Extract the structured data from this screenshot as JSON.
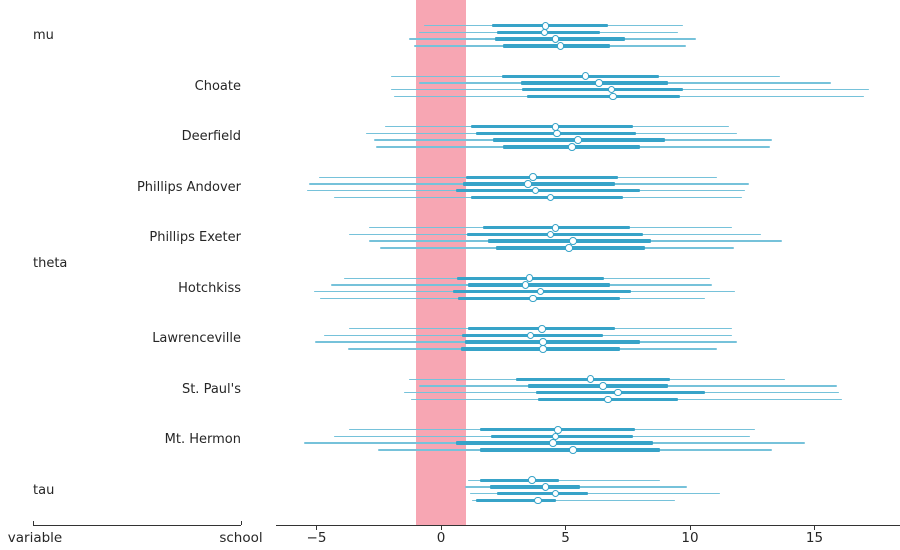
{
  "columns": {
    "variable": "variable",
    "school": "school"
  },
  "colors": {
    "interval_thin": "#76c2da",
    "interval_thick": "#37a3c8",
    "point_fill": "#ffffff",
    "rope_band": "#f7a6b3",
    "axis_line": "#333333",
    "text": "#262626",
    "background": "#ffffff"
  },
  "chart_data": {
    "type": "forest",
    "title": "",
    "xlabel": "",
    "legend": "none",
    "grid": false,
    "xlim": [
      -6.6,
      18.4
    ],
    "x_ticks": [
      {
        "value": -5,
        "label": "−5"
      },
      {
        "value": 0,
        "label": "0"
      },
      {
        "value": 5,
        "label": "5"
      },
      {
        "value": 10,
        "label": "10"
      },
      {
        "value": 15,
        "label": "15"
      }
    ],
    "rope": {
      "from": -1,
      "to": 1
    },
    "rows_per_group": 4,
    "row_values_format": "[outer_lo, inner_lo, point, inner_hi, outer_hi]",
    "groups": [
      {
        "variable": "mu",
        "school": null,
        "rows": [
          [
            -0.7,
            2.05,
            4.2,
            6.7,
            9.7
          ],
          [
            -0.9,
            2.25,
            4.15,
            6.4,
            9.5
          ],
          [
            -1.3,
            2.15,
            4.6,
            7.4,
            10.25
          ],
          [
            -1.1,
            2.5,
            4.8,
            6.8,
            9.85
          ]
        ]
      },
      {
        "variable": "theta",
        "school": "Choate",
        "rows": [
          [
            -2.0,
            2.45,
            5.8,
            8.75,
            13.6
          ],
          [
            -0.9,
            3.2,
            6.35,
            9.1,
            15.65
          ],
          [
            -2.0,
            3.25,
            6.85,
            9.7,
            17.2
          ],
          [
            -1.9,
            3.45,
            6.9,
            9.6,
            17.0
          ]
        ]
      },
      {
        "variable": "theta",
        "school": "Deerfield",
        "rows": [
          [
            -2.25,
            1.2,
            4.6,
            7.7,
            11.55
          ],
          [
            -3.0,
            1.4,
            4.65,
            7.85,
            11.9
          ],
          [
            -2.7,
            2.1,
            5.5,
            9.0,
            13.3
          ],
          [
            -2.6,
            2.5,
            5.25,
            8.0,
            13.2
          ]
        ]
      },
      {
        "variable": "theta",
        "school": "Phillips Andover",
        "rows": [
          [
            -4.9,
            1.0,
            3.7,
            7.1,
            11.1
          ],
          [
            -5.3,
            0.9,
            3.5,
            7.0,
            12.35
          ],
          [
            -5.4,
            0.6,
            3.8,
            8.0,
            12.2
          ],
          [
            -4.3,
            1.2,
            4.4,
            7.3,
            12.1
          ]
        ]
      },
      {
        "variable": "theta",
        "school": "Phillips Exeter",
        "rows": [
          [
            -2.9,
            1.7,
            4.6,
            7.6,
            11.7
          ],
          [
            -3.7,
            1.05,
            4.4,
            8.1,
            12.85
          ],
          [
            -2.9,
            1.9,
            5.3,
            8.45,
            13.7
          ],
          [
            -2.45,
            2.2,
            5.15,
            8.2,
            11.75
          ]
        ]
      },
      {
        "variable": "theta",
        "school": "Hotchkiss",
        "rows": [
          [
            -3.9,
            0.65,
            3.55,
            6.55,
            10.8
          ],
          [
            -4.4,
            1.1,
            3.4,
            6.8,
            10.9
          ],
          [
            -5.1,
            0.5,
            4.0,
            7.65,
            11.8
          ],
          [
            -4.85,
            0.7,
            3.7,
            7.2,
            10.6
          ]
        ]
      },
      {
        "variable": "theta",
        "school": "Lawrenceville",
        "rows": [
          [
            -3.7,
            1.1,
            4.05,
            7.0,
            11.7
          ],
          [
            -4.7,
            0.85,
            3.6,
            6.5,
            11.7
          ],
          [
            -5.05,
            0.95,
            4.1,
            8.0,
            11.9
          ],
          [
            -3.75,
            0.8,
            4.1,
            7.2,
            11.1
          ]
        ]
      },
      {
        "variable": "theta",
        "school": "St. Paul's",
        "rows": [
          [
            -1.3,
            3.0,
            6.0,
            9.2,
            13.8
          ],
          [
            -0.9,
            3.5,
            6.5,
            9.1,
            15.9
          ],
          [
            -1.5,
            3.8,
            7.1,
            10.6,
            16.0
          ],
          [
            -1.2,
            3.9,
            6.7,
            9.5,
            16.1
          ]
        ]
      },
      {
        "variable": "theta",
        "school": "Mt. Hermon",
        "rows": [
          [
            -3.7,
            1.55,
            4.7,
            7.8,
            12.6
          ],
          [
            -4.3,
            2.0,
            4.6,
            7.7,
            12.4
          ],
          [
            -5.5,
            0.6,
            4.5,
            8.5,
            14.6
          ],
          [
            -2.55,
            1.55,
            5.3,
            8.8,
            13.3
          ]
        ]
      },
      {
        "variable": "tau",
        "school": null,
        "rows": [
          [
            1.1,
            1.55,
            3.65,
            4.75,
            8.8
          ],
          [
            0.95,
            1.95,
            4.2,
            5.6,
            9.9
          ],
          [
            1.15,
            2.25,
            4.6,
            5.9,
            11.2
          ],
          [
            1.25,
            1.4,
            3.9,
            4.6,
            9.4
          ]
        ]
      }
    ]
  }
}
